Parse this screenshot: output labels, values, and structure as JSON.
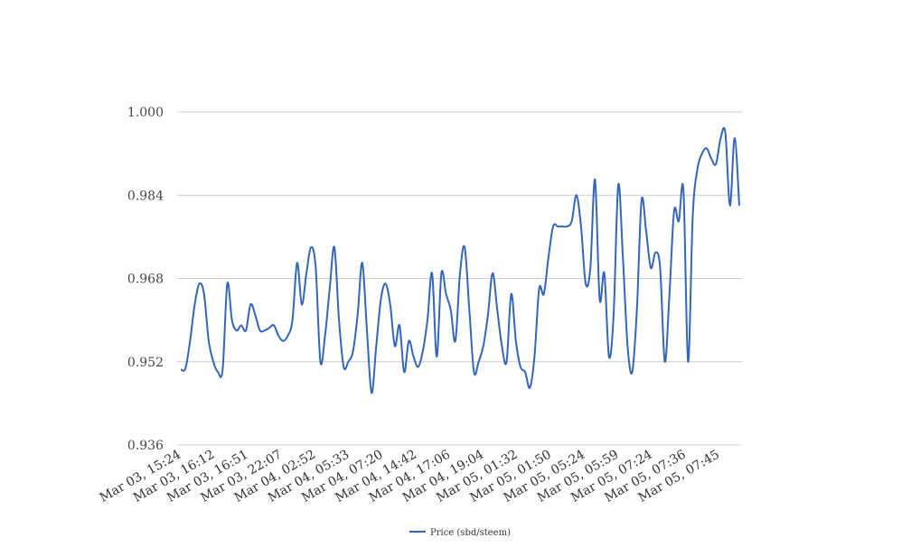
{
  "chart_data": {
    "type": "line",
    "title": "",
    "xlabel": "",
    "ylabel": "",
    "ylim": [
      0.936,
      1.0
    ],
    "yticks": [
      "0.936",
      "0.952",
      "0.968",
      "0.984",
      "1.000"
    ],
    "x_tick_labels": [
      "Mar 03, 15:24",
      "Mar 03, 16:12",
      "Mar 03, 16:51",
      "Mar 03, 22:07",
      "Mar 04, 02:52",
      "Mar 04, 05:33",
      "Mar 04, 07:20",
      "Mar 04, 14:42",
      "Mar 04, 17:06",
      "Mar 04, 19:04",
      "Mar 05, 01:32",
      "Mar 05, 01:50",
      "Mar 05, 05:24",
      "Mar 05, 05:59",
      "Mar 05, 07:24",
      "Mar 05, 07:36",
      "Mar 05, 07:45"
    ],
    "grid": true,
    "legend_position": "bottom",
    "color": "#3366bb",
    "series": [
      {
        "name": "Price (sbd/steem)",
        "values": [
          0.9505,
          0.9507,
          0.956,
          0.963,
          0.967,
          0.965,
          0.956,
          0.952,
          0.95,
          0.9505,
          0.967,
          0.96,
          0.958,
          0.959,
          0.958,
          0.963,
          0.961,
          0.958,
          0.958,
          0.9585,
          0.959,
          0.957,
          0.956,
          0.957,
          0.96,
          0.971,
          0.963,
          0.969,
          0.974,
          0.97,
          0.952,
          0.957,
          0.966,
          0.974,
          0.96,
          0.951,
          0.952,
          0.954,
          0.961,
          0.971,
          0.958,
          0.946,
          0.955,
          0.964,
          0.967,
          0.963,
          0.955,
          0.959,
          0.95,
          0.956,
          0.953,
          0.951,
          0.954,
          0.96,
          0.969,
          0.953,
          0.969,
          0.965,
          0.962,
          0.956,
          0.969,
          0.974,
          0.962,
          0.95,
          0.952,
          0.955,
          0.961,
          0.969,
          0.962,
          0.955,
          0.952,
          0.965,
          0.956,
          0.951,
          0.95,
          0.947,
          0.953,
          0.966,
          0.965,
          0.972,
          0.978,
          0.978,
          0.978,
          0.978,
          0.979,
          0.984,
          0.978,
          0.967,
          0.97,
          0.987,
          0.964,
          0.969,
          0.953,
          0.961,
          0.986,
          0.972,
          0.955,
          0.95,
          0.962,
          0.983,
          0.977,
          0.97,
          0.973,
          0.97,
          0.952,
          0.965,
          0.981,
          0.979,
          0.985,
          0.952,
          0.98,
          0.989,
          0.992,
          0.993,
          0.991,
          0.99,
          0.995,
          0.996,
          0.982,
          0.995,
          0.982
        ]
      }
    ]
  }
}
